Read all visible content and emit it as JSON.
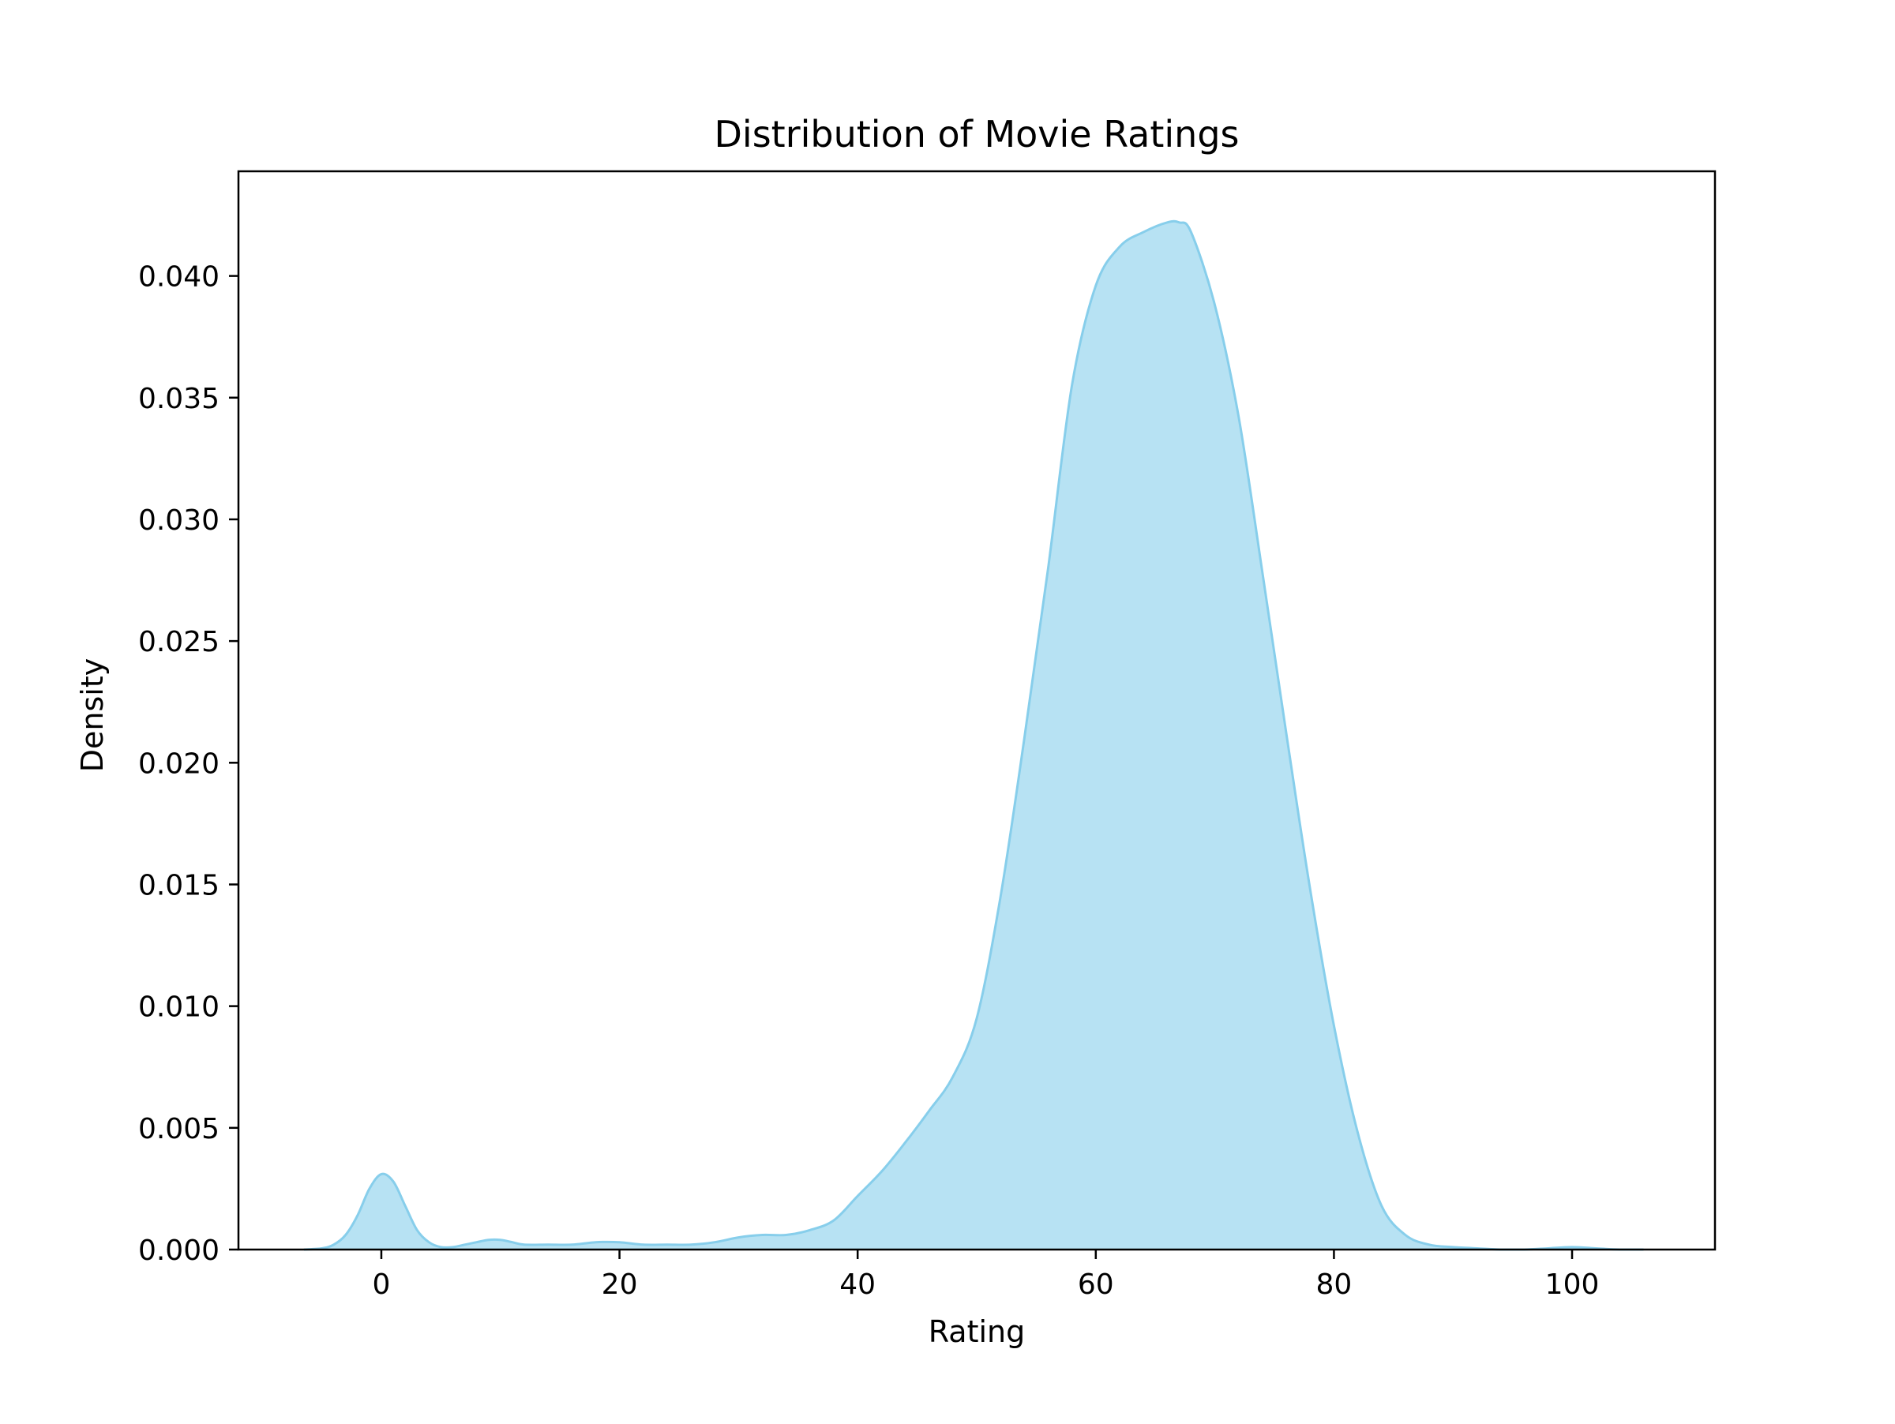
{
  "chart_data": {
    "type": "area",
    "title": "Distribution of Movie Ratings",
    "xlabel": "Rating",
    "ylabel": "Density",
    "xlim": [
      -12,
      112
    ],
    "ylim": [
      0,
      0.0443
    ],
    "x_ticks": [
      0,
      20,
      40,
      60,
      80,
      100
    ],
    "x_tick_labels": [
      "0",
      "20",
      "40",
      "60",
      "80",
      "100"
    ],
    "y_ticks": [
      0,
      0.005,
      0.01,
      0.015,
      0.02,
      0.025,
      0.03,
      0.035,
      0.04
    ],
    "y_tick_labels": [
      "0.000",
      "0.005",
      "0.010",
      "0.015",
      "0.020",
      "0.025",
      "0.030",
      "0.035",
      "0.040"
    ],
    "grid": false,
    "legend": "none",
    "colors": {
      "fill": "#87ceeb",
      "line": "#87ceeb",
      "axes": "#000000"
    },
    "fill_opacity": 0.6,
    "series": [
      {
        "x": [
          -6.5,
          -5,
          -4,
          -3,
          -2,
          -1,
          0,
          1,
          2,
          3,
          4,
          5,
          6,
          7,
          8,
          9,
          10,
          11,
          12,
          14,
          16,
          18,
          20,
          22,
          24,
          26,
          28,
          30,
          32,
          34,
          36,
          38,
          40,
          42,
          44,
          46,
          48,
          50,
          52,
          54,
          56,
          58,
          60,
          62,
          64,
          66,
          67,
          68,
          70,
          72,
          74,
          76,
          78,
          80,
          82,
          84,
          86,
          88,
          90,
          92,
          94,
          96,
          98,
          100,
          102,
          104,
          106
        ],
        "y": [
          0.0,
          5e-05,
          0.0002,
          0.0006,
          0.0014,
          0.0025,
          0.0031,
          0.0028,
          0.0018,
          0.0008,
          0.0003,
          0.0001,
          0.0001,
          0.0002,
          0.0003,
          0.0004,
          0.0004,
          0.0003,
          0.0002,
          0.0002,
          0.0002,
          0.0003,
          0.0003,
          0.0002,
          0.0002,
          0.0002,
          0.0003,
          0.0005,
          0.0006,
          0.0006,
          0.0008,
          0.0012,
          0.0022,
          0.0032,
          0.0044,
          0.0057,
          0.0071,
          0.0095,
          0.0145,
          0.021,
          0.028,
          0.0355,
          0.0396,
          0.0412,
          0.0418,
          0.0422,
          0.0422,
          0.0418,
          0.0388,
          0.0342,
          0.0278,
          0.0212,
          0.0148,
          0.0092,
          0.0048,
          0.0018,
          0.0006,
          0.0002,
          0.0001,
          5e-05,
          0.0,
          0.0,
          5e-05,
          0.0001,
          5e-05,
          0.0,
          0.0
        ]
      }
    ]
  }
}
